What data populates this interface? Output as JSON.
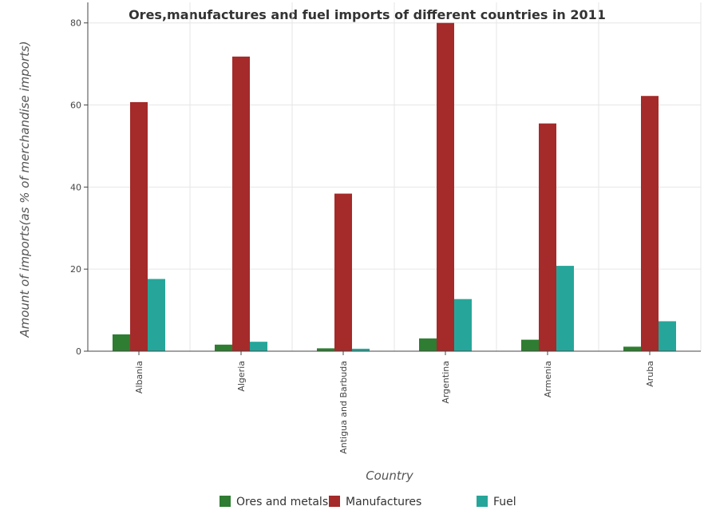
{
  "chart_data": {
    "type": "bar",
    "title": "Ores,manufactures and fuel imports of different countries in 2011",
    "xlabel": "Country",
    "ylabel": "Amount of imports(as % of merchandise imports)",
    "ylim": [
      0,
      85
    ],
    "yticks": [
      0,
      20,
      40,
      60,
      80
    ],
    "grid": true,
    "legend_position": "bottom",
    "categories": [
      "Albania",
      "Algeria",
      "Antigua and Barbuda",
      "Argentina",
      "Armenia",
      "Aruba"
    ],
    "series": [
      {
        "name": "Ores and metals",
        "color": "#2e7d32",
        "values": [
          4.1,
          1.6,
          0.7,
          3.1,
          2.8,
          1.1
        ]
      },
      {
        "name": "Manufactures",
        "color": "#a52a2a",
        "values": [
          60.7,
          71.8,
          38.4,
          80.0,
          55.5,
          62.2
        ]
      },
      {
        "name": "Fuel",
        "color": "#26a69a",
        "values": [
          17.6,
          2.3,
          0.6,
          12.7,
          20.8,
          7.3
        ]
      }
    ]
  }
}
